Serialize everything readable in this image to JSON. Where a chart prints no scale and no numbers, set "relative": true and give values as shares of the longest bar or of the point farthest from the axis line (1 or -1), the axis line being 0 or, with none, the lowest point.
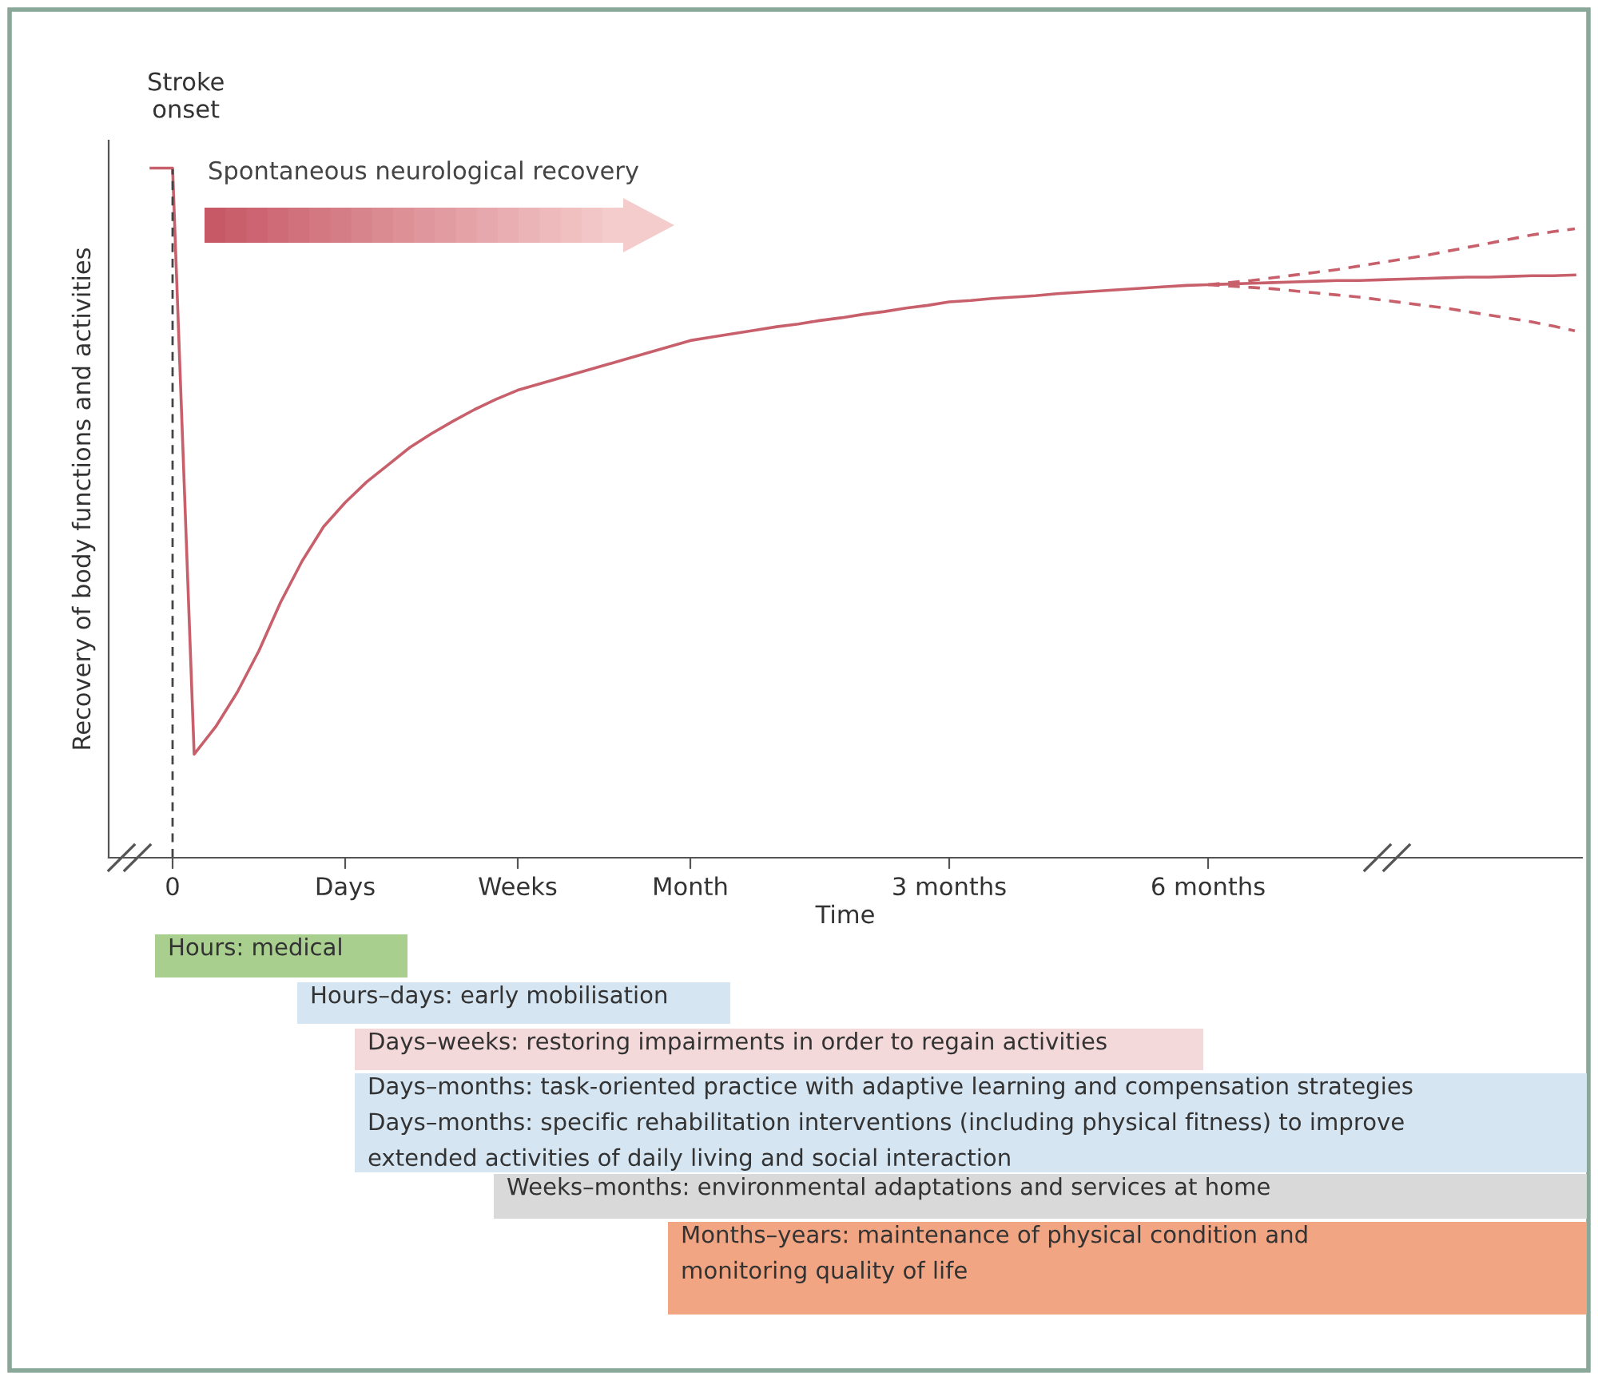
{
  "chart_data": {
    "type": "line",
    "relative": true,
    "xlabel": "Time",
    "ylabel": "Recovery of body functions and activities",
    "categories": [
      null,
      "0",
      null,
      null,
      null,
      null,
      null,
      null,
      null,
      "Days",
      null,
      null,
      null,
      null,
      null,
      null,
      null,
      "Weeks",
      null,
      null,
      null,
      null,
      null,
      null,
      null,
      "Month",
      null,
      null,
      null,
      null,
      null,
      null,
      null,
      null,
      null,
      null,
      null,
      "3 months",
      null,
      null,
      null,
      null,
      null,
      null,
      null,
      null,
      null,
      null,
      null,
      "6 months",
      null,
      null,
      null,
      null,
      null,
      null,
      null,
      null,
      null,
      null,
      null,
      null,
      null,
      null,
      null,
      null,
      null
    ],
    "series": [
      {
        "color": "#c8606c",
        "line_style": "solid",
        "values": [
          1.0,
          1.0,
          0.15,
          0.19,
          0.24,
          0.3,
          0.37,
          0.43,
          0.48,
          0.515,
          0.545,
          0.57,
          0.595,
          0.615,
          0.633,
          0.65,
          0.665,
          0.678,
          0.687,
          0.696,
          0.705,
          0.714,
          0.723,
          0.732,
          0.741,
          0.75,
          0.755,
          0.76,
          0.765,
          0.77,
          0.774,
          0.779,
          0.783,
          0.788,
          0.792,
          0.797,
          0.801,
          0.806,
          0.808,
          0.811,
          0.813,
          0.815,
          0.818,
          0.82,
          0.822,
          0.824,
          0.826,
          0.828,
          0.83,
          0.831,
          0.832,
          0.833,
          0.834,
          0.835,
          0.836,
          0.837,
          0.837,
          0.838,
          0.839,
          0.84,
          0.841,
          0.842,
          0.842,
          0.843,
          0.844,
          0.844,
          0.845
        ]
      },
      {
        "color": "#c8606c",
        "line_style": "dashed",
        "values": [
          null,
          null,
          null,
          null,
          null,
          null,
          null,
          null,
          null,
          null,
          null,
          null,
          null,
          null,
          null,
          null,
          null,
          null,
          null,
          null,
          null,
          null,
          null,
          null,
          null,
          null,
          null,
          null,
          null,
          null,
          null,
          null,
          null,
          null,
          null,
          null,
          null,
          null,
          null,
          null,
          null,
          null,
          null,
          null,
          null,
          null,
          null,
          null,
          null,
          0.831,
          0.834,
          0.837,
          0.841,
          0.845,
          0.849,
          0.853,
          0.858,
          0.863,
          0.868,
          0.873,
          0.879,
          0.885,
          0.891,
          0.897,
          0.903,
          0.908,
          0.912
        ]
      },
      {
        "color": "#c8606c",
        "line_style": "dashed",
        "values": [
          null,
          null,
          null,
          null,
          null,
          null,
          null,
          null,
          null,
          null,
          null,
          null,
          null,
          null,
          null,
          null,
          null,
          null,
          null,
          null,
          null,
          null,
          null,
          null,
          null,
          null,
          null,
          null,
          null,
          null,
          null,
          null,
          null,
          null,
          null,
          null,
          null,
          null,
          null,
          null,
          null,
          null,
          null,
          null,
          null,
          null,
          null,
          null,
          null,
          0.831,
          0.829,
          0.827,
          0.825,
          0.822,
          0.819,
          0.816,
          0.813,
          0.809,
          0.805,
          0.801,
          0.797,
          0.792,
          0.787,
          0.782,
          0.777,
          0.771,
          0.764
        ]
      }
    ],
    "ref_lines": [
      {
        "axis": "x",
        "value": "0",
        "label": "Stroke\nonset",
        "color": "#444444",
        "line_style": "dashed"
      }
    ],
    "annotations": [
      "Spontaneous neurological recovery",
      "Hours: medical",
      "Hours–days: early mobilisation",
      "Days–weeks: restoring impairments in order to regain activities",
      "Days–months: task-oriented practice with adaptive learning and compensation strategies\nDays–months: specific rehabilitation interventions (including physical fitness) to improve\nextended activities of daily living and social interaction",
      "Weeks–months: environmental adaptations and services at home",
      "Months–years: maintenance of physical condition and\nmonitoring quality of life"
    ]
  }
}
